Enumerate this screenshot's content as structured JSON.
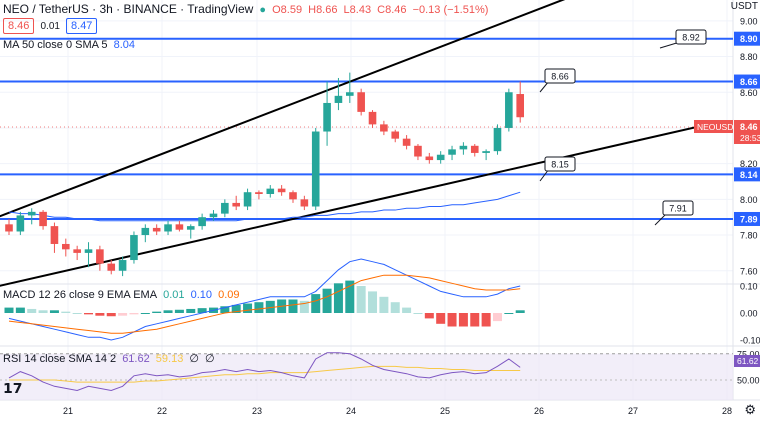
{
  "header": {
    "symbol": "NEO / TetherUS · 3h · BINANCE · TradingView",
    "open": "O8.59",
    "high": "H8.66",
    "low": "L8.43",
    "close": "C8.46",
    "change": "−0.13 (−1.51%)",
    "sell_price": "8.46",
    "spread": "0.01",
    "buy_price": "8.47",
    "currency": "USDT"
  },
  "indicators": {
    "ma_label": "MA 50 close 0 SMA 5",
    "ma_value": "8.04",
    "macd_label": "MACD 12 26 close 9 EMA EMA",
    "macd_v1": "0.01",
    "macd_v2": "0.10",
    "macd_v3": "0.09",
    "rsi_label": "RSI 14 close SMA 14 2",
    "rsi_v1": "61.62",
    "rsi_v2": "59.13",
    "rsi_v3": "∅",
    "rsi_v4": "∅"
  },
  "colors": {
    "up": "#26a69a",
    "down": "#ef5350",
    "level": "#2962ff",
    "ma": "#2962ff",
    "trend": "#000000"
  },
  "price_label": {
    "name": "NEOUSDT",
    "price": "8.46",
    "countdown": "28:53"
  },
  "chart_data": {
    "type": "candlestick",
    "x_ticks": [
      "21",
      "22",
      "23",
      "24",
      "25",
      "26",
      "27",
      "28"
    ],
    "y_ticks": [
      "9.00",
      "8.80",
      "8.60",
      "8.20",
      "8.00",
      "7.80",
      "7.60"
    ],
    "ylim": [
      7.55,
      9.1
    ],
    "ohlc": [
      [
        7.86,
        7.89,
        7.8,
        7.82
      ],
      [
        7.82,
        7.93,
        7.8,
        7.91
      ],
      [
        7.91,
        7.95,
        7.86,
        7.93
      ],
      [
        7.93,
        7.94,
        7.83,
        7.85
      ],
      [
        7.85,
        7.87,
        7.7,
        7.75
      ],
      [
        7.75,
        7.78,
        7.68,
        7.72
      ],
      [
        7.72,
        7.74,
        7.66,
        7.7
      ],
      [
        7.7,
        7.76,
        7.62,
        7.72
      ],
      [
        7.72,
        7.74,
        7.6,
        7.64
      ],
      [
        7.64,
        7.66,
        7.58,
        7.6
      ],
      [
        7.6,
        7.68,
        7.57,
        7.66
      ],
      [
        7.66,
        7.82,
        7.64,
        7.8
      ],
      [
        7.8,
        7.86,
        7.76,
        7.84
      ],
      [
        7.84,
        7.86,
        7.8,
        7.82
      ],
      [
        7.82,
        7.88,
        7.8,
        7.86
      ],
      [
        7.86,
        7.88,
        7.82,
        7.83
      ],
      [
        7.83,
        7.86,
        7.78,
        7.85
      ],
      [
        7.85,
        7.92,
        7.83,
        7.9
      ],
      [
        7.9,
        7.94,
        7.88,
        7.92
      ],
      [
        7.92,
        8.0,
        7.9,
        7.98
      ],
      [
        7.98,
        8.02,
        7.94,
        7.96
      ],
      [
        7.96,
        8.06,
        7.94,
        8.04
      ],
      [
        8.04,
        8.05,
        8.0,
        8.03
      ],
      [
        8.03,
        8.08,
        8.01,
        8.06
      ],
      [
        8.06,
        8.08,
        8.02,
        8.04
      ],
      [
        8.04,
        8.05,
        7.98,
        8.0
      ],
      [
        8.0,
        8.02,
        7.94,
        7.96
      ],
      [
        7.96,
        8.4,
        7.94,
        8.38
      ],
      [
        8.38,
        8.66,
        8.3,
        8.54
      ],
      [
        8.54,
        8.68,
        8.5,
        8.58
      ],
      [
        8.58,
        8.71,
        8.54,
        8.6
      ],
      [
        8.6,
        8.62,
        8.47,
        8.49
      ],
      [
        8.49,
        8.5,
        8.4,
        8.42
      ],
      [
        8.42,
        8.44,
        8.36,
        8.38
      ],
      [
        8.38,
        8.39,
        8.32,
        8.34
      ],
      [
        8.34,
        8.36,
        8.28,
        8.3
      ],
      [
        8.3,
        8.31,
        8.22,
        8.24
      ],
      [
        8.24,
        8.26,
        8.2,
        8.22
      ],
      [
        8.22,
        8.27,
        8.2,
        8.25
      ],
      [
        8.25,
        8.3,
        8.22,
        8.28
      ],
      [
        8.28,
        8.32,
        8.25,
        8.3
      ],
      [
        8.3,
        8.31,
        8.24,
        8.26
      ],
      [
        8.26,
        8.28,
        8.22,
        8.27
      ],
      [
        8.27,
        8.42,
        8.25,
        8.4
      ],
      [
        8.4,
        8.62,
        8.38,
        8.6
      ],
      [
        8.59,
        8.66,
        8.43,
        8.46
      ]
    ],
    "ma50": [
      7.93,
      7.92,
      7.92,
      7.91,
      7.9,
      7.9,
      7.89,
      7.89,
      7.88,
      7.88,
      7.88,
      7.88,
      7.88,
      7.88,
      7.88,
      7.88,
      7.88,
      7.88,
      7.88,
      7.88,
      7.88,
      7.89,
      7.89,
      7.89,
      7.89,
      7.9,
      7.9,
      7.91,
      7.91,
      7.92,
      7.92,
      7.93,
      7.93,
      7.94,
      7.94,
      7.95,
      7.95,
      7.96,
      7.96,
      7.97,
      7.97,
      7.98,
      7.99,
      8.0,
      8.02,
      8.04
    ],
    "levels": [
      8.9,
      8.66,
      8.14,
      7.89
    ],
    "callouts": [
      "8.92",
      "8.66",
      "8.15",
      "7.91"
    ],
    "channel": [
      [
        0,
        7.925,
        28,
        8.61
      ],
      [
        5,
        7.6,
        45,
        8.18
      ]
    ],
    "macd_hist": [
      0.02,
      0.02,
      0.015,
      0.01,
      0.01,
      0.005,
      0.0,
      -0.005,
      -0.01,
      -0.012,
      -0.01,
      -0.005,
      0.0,
      0.005,
      0.01,
      0.012,
      0.015,
      0.018,
      0.02,
      0.025,
      0.03,
      0.035,
      0.04,
      0.045,
      0.05,
      0.05,
      0.045,
      0.07,
      0.09,
      0.11,
      0.12,
      0.1,
      0.08,
      0.06,
      0.04,
      0.02,
      0.0,
      -0.02,
      -0.04,
      -0.05,
      -0.05,
      -0.05,
      -0.05,
      -0.03,
      0.0,
      0.01
    ],
    "macd_line": [
      -0.02,
      -0.03,
      -0.04,
      -0.05,
      -0.06,
      -0.07,
      -0.08,
      -0.09,
      -0.09,
      -0.1,
      -0.09,
      -0.07,
      -0.05,
      -0.04,
      -0.03,
      -0.02,
      -0.01,
      0.0,
      0.01,
      0.02,
      0.03,
      0.04,
      0.05,
      0.06,
      0.06,
      0.06,
      0.06,
      0.08,
      0.12,
      0.16,
      0.19,
      0.2,
      0.19,
      0.18,
      0.16,
      0.14,
      0.12,
      0.1,
      0.08,
      0.07,
      0.06,
      0.06,
      0.06,
      0.07,
      0.09,
      0.1
    ],
    "signal_line": [
      -0.03,
      -0.035,
      -0.04,
      -0.045,
      -0.05,
      -0.055,
      -0.06,
      -0.065,
      -0.07,
      -0.075,
      -0.075,
      -0.07,
      -0.065,
      -0.06,
      -0.05,
      -0.04,
      -0.03,
      -0.02,
      -0.01,
      0.0,
      0.005,
      0.01,
      0.015,
      0.02,
      0.025,
      0.03,
      0.035,
      0.045,
      0.06,
      0.08,
      0.1,
      0.12,
      0.13,
      0.14,
      0.14,
      0.14,
      0.135,
      0.13,
      0.12,
      0.11,
      0.1,
      0.09,
      0.085,
      0.085,
      0.085,
      0.09
    ],
    "macd_ticks": [
      "0.10",
      "0.00",
      "-0.10"
    ],
    "rsi": [
      52,
      58,
      54,
      48,
      44,
      42,
      40,
      44,
      42,
      40,
      44,
      54,
      56,
      54,
      55,
      53,
      54,
      57,
      58,
      60,
      58,
      60,
      58,
      59,
      57,
      54,
      52,
      70,
      76,
      76,
      75,
      70,
      64,
      60,
      58,
      56,
      53,
      52,
      55,
      57,
      58,
      56,
      57,
      63,
      70,
      62
    ],
    "rsi_ma": [
      50,
      50,
      50,
      50,
      50,
      49,
      48,
      48,
      48,
      48,
      48,
      48,
      49,
      49,
      50,
      51,
      52,
      53,
      54,
      55,
      55,
      56,
      56,
      57,
      57,
      57,
      57,
      58,
      59,
      60,
      61,
      62,
      63,
      63,
      63,
      62,
      62,
      61,
      61,
      60,
      60,
      59,
      59,
      59,
      59,
      59
    ],
    "rsi_ticks": [
      "75.00",
      "50.00"
    ]
  }
}
